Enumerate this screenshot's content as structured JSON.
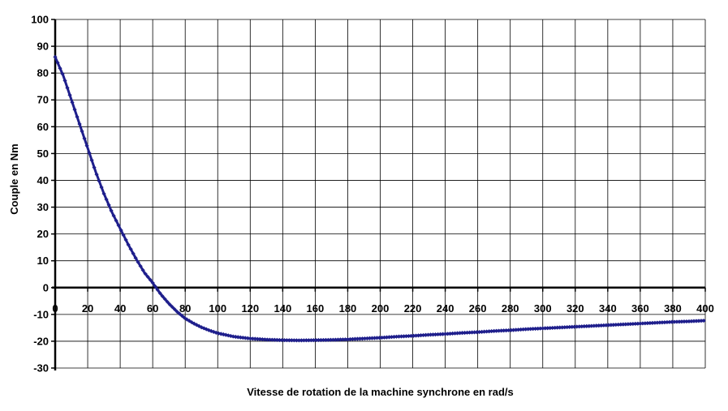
{
  "chart_data": {
    "type": "line",
    "title": "",
    "xlabel": "Vitesse de rotation de la machine synchrone en rad/s",
    "ylabel": "Couple en Nm",
    "xlim": [
      0,
      400
    ],
    "ylim": [
      -30,
      100
    ],
    "x_ticks": [
      0,
      20,
      40,
      60,
      80,
      100,
      120,
      140,
      160,
      180,
      200,
      220,
      240,
      260,
      280,
      300,
      320,
      340,
      360,
      380,
      400
    ],
    "y_ticks": [
      -30,
      -20,
      -10,
      0,
      10,
      20,
      30,
      40,
      50,
      60,
      70,
      80,
      90,
      100
    ],
    "grid": true,
    "legend": "none",
    "colors": {
      "series": "#1f1f8c",
      "grid": "#000000",
      "axis": "#000000"
    },
    "series": [
      {
        "x": [
          0,
          5,
          10,
          15,
          20,
          25,
          30,
          35,
          40,
          45,
          50,
          55,
          60,
          62,
          65,
          70,
          75,
          80,
          85,
          90,
          95,
          100,
          110,
          120,
          130,
          140,
          150,
          160,
          170,
          180,
          190,
          200,
          210,
          220,
          230,
          240,
          250,
          260,
          270,
          280,
          290,
          300,
          310,
          320,
          330,
          340,
          350,
          360,
          370,
          380,
          390,
          400
        ],
        "y": [
          86,
          79,
          70,
          61,
          52,
          43,
          35,
          28,
          22,
          16,
          10.5,
          5.5,
          1.8,
          0,
          -2.5,
          -6,
          -9,
          -11.5,
          -13.3,
          -14.8,
          -16,
          -17,
          -18.3,
          -19,
          -19.4,
          -19.6,
          -19.7,
          -19.6,
          -19.5,
          -19.3,
          -19,
          -18.7,
          -18.3,
          -18,
          -17.6,
          -17.3,
          -16.9,
          -16.6,
          -16.2,
          -15.9,
          -15.5,
          -15.2,
          -14.9,
          -14.6,
          -14.3,
          -14,
          -13.7,
          -13.4,
          -13.1,
          -12.8,
          -12.6,
          -12.3
        ]
      }
    ]
  }
}
